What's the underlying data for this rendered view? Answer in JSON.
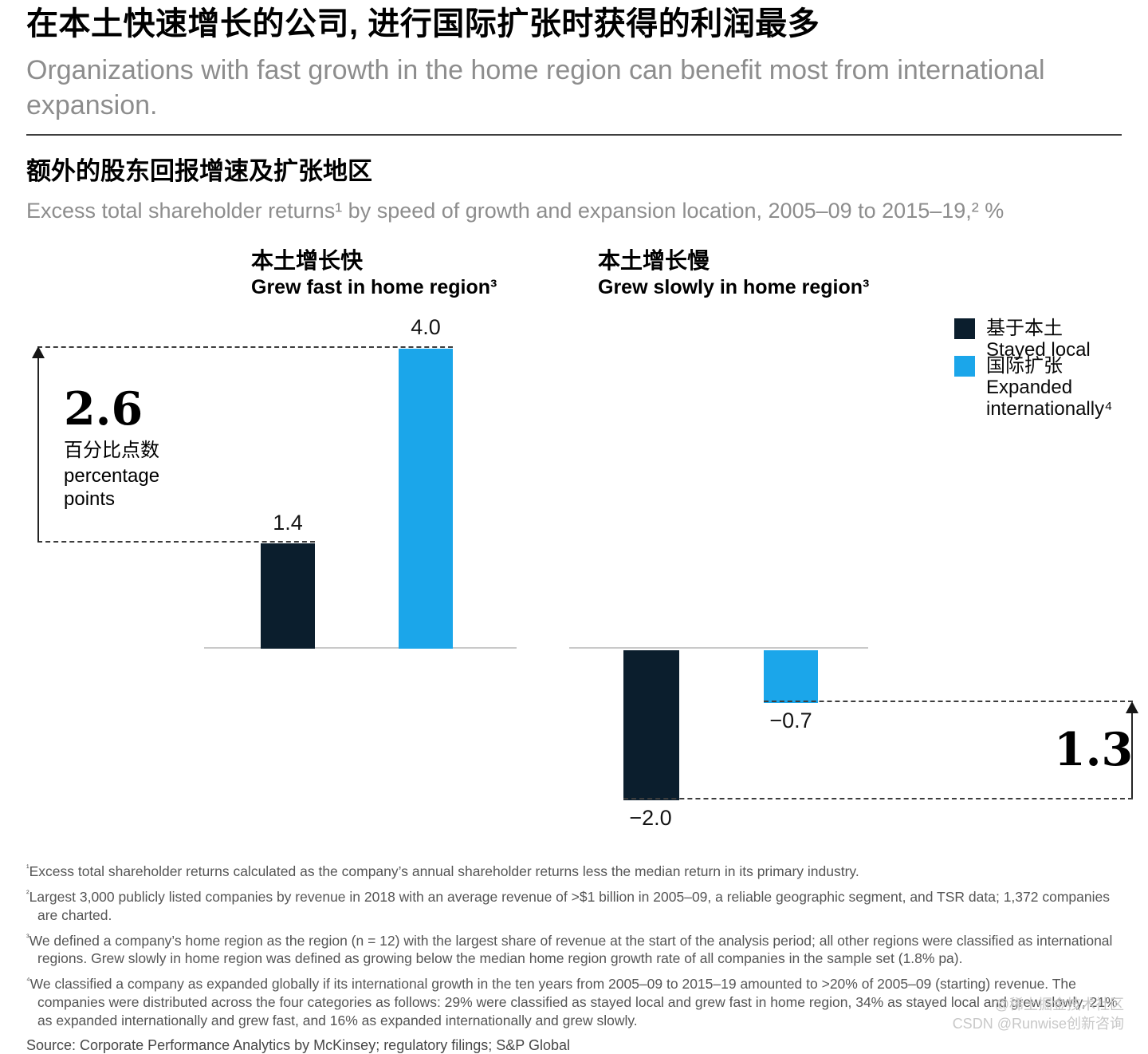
{
  "page": {
    "title_zh": "在本土快速增长的公司, 进行国际扩张时获得的利润最多",
    "title_en": "Organizations with fast growth in the home region can benefit most from international expansion."
  },
  "exhibit": {
    "title_zh": "额外的股东回报增速及扩张地区",
    "subtitle_en": "Excess total shareholder returns¹ by speed of growth and expansion location, 2005–09 to 2015–19,² %"
  },
  "chart_data": {
    "type": "bar",
    "unit": "%",
    "ylim": [
      -2.0,
      4.0
    ],
    "baseline": 0,
    "grid": false,
    "legend_position": "right",
    "series_names": [
      "Stayed local",
      "Expanded internationally"
    ],
    "groups": [
      {
        "label_zh": "本土增长快",
        "label_en": "Grew fast in home region³",
        "bars": [
          {
            "series": "Stayed local",
            "value": 1.4,
            "label": "1.4"
          },
          {
            "series": "Expanded internationally",
            "value": 4.0,
            "label": "4.0"
          }
        ],
        "difference": {
          "value": 2.6,
          "label": "2.6",
          "caption_zh": "百分比点数",
          "caption_en": "percentage points"
        }
      },
      {
        "label_zh": "本土增长慢",
        "label_en": "Grew slowly in home region³",
        "bars": [
          {
            "series": "Stayed local",
            "value": -2.0,
            "label": "−2.0"
          },
          {
            "series": "Expanded internationally",
            "value": -0.7,
            "label": "−0.7"
          }
        ],
        "difference": {
          "value": 1.3,
          "label": "1.3"
        }
      }
    ],
    "legend": [
      {
        "label_zh": "基于本土",
        "label_en": "Stayed local",
        "color": "#0b1e2d"
      },
      {
        "label_zh": "国际扩张",
        "label_en": "Expanded internationally⁴",
        "color": "#1ba6ea"
      }
    ]
  },
  "footnotes": [
    {
      "marker": "¹",
      "text": "Excess total shareholder returns calculated as the company’s annual shareholder returns less the median return in its primary industry."
    },
    {
      "marker": "²",
      "text": "Largest 3,000 publicly listed companies by revenue in 2018 with an average revenue of >$1 billion in 2005–09, a reliable geographic segment, and TSR data; 1,372  companies are charted."
    },
    {
      "marker": "³",
      "text": "We defined a company’s home region as the region (n = 12) with the largest share of revenue at the start of the analysis period; all other regions were classified as international regions. Grew slowly in home region was defined as growing below the median home region growth rate of all companies in the sample set (1.8% pa)."
    },
    {
      "marker": "⁴",
      "text": "We classified a company as expanded globally if its international growth in the ten years from 2005–09 to 2015–19 amounted to >20% of 2005–09 (starting) revenue. The companies were distributed across the four categories as follows: 29% were classified as stayed local and grew fast in home region, 34% as stayed local and grew slowly, 21% as expanded internationally and grew fast, and 16% as expanded internationally and grew slowly."
    }
  ],
  "source": "Source: Corporate Performance Analytics by McKinsey; regulatory filings; S&P Global",
  "watermark": {
    "line1": "@稀土掘金技术社区",
    "line2": "CSDN @Runwise创新咨询"
  },
  "colors": {
    "stayed_local": "#0b1e2d",
    "expanded_internationally": "#1ba6ea",
    "axis": "#c9c9c9",
    "muted_text": "#8d8d8d",
    "footnote_text": "#555555",
    "watermark_text": "#c8c8c8"
  }
}
